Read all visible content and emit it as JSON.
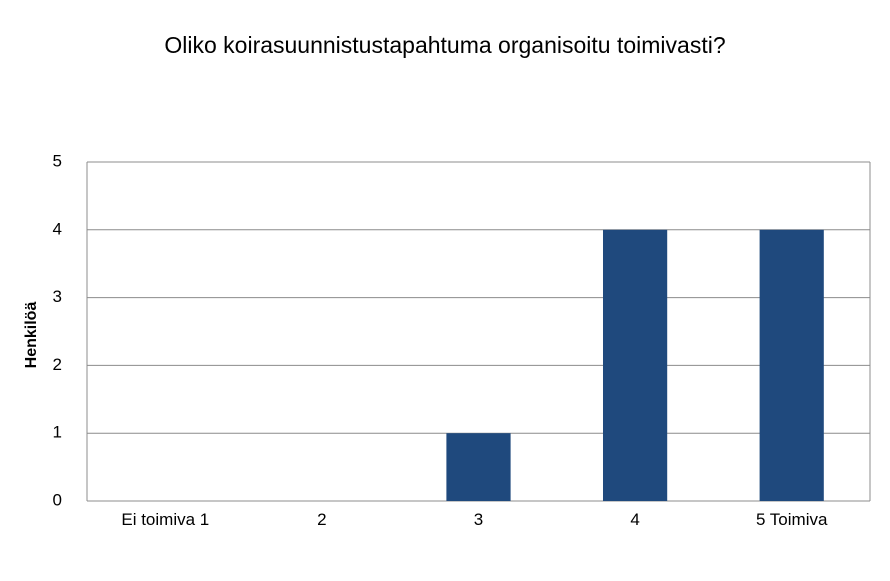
{
  "chart_data": {
    "type": "bar",
    "title": "Oliko koirasuunnistustapahtuma organisoitu toimivasti?",
    "y_label": "Henkilöä",
    "categories": [
      "Ei toimiva 1",
      "2",
      "3",
      "4",
      "5 Toimiva"
    ],
    "values": [
      0,
      0,
      1,
      4,
      4
    ],
    "color": "#1f497d",
    "ylim": [
      0,
      5
    ],
    "yticks": [
      0,
      1,
      2,
      3,
      4,
      5
    ],
    "grid": true
  }
}
